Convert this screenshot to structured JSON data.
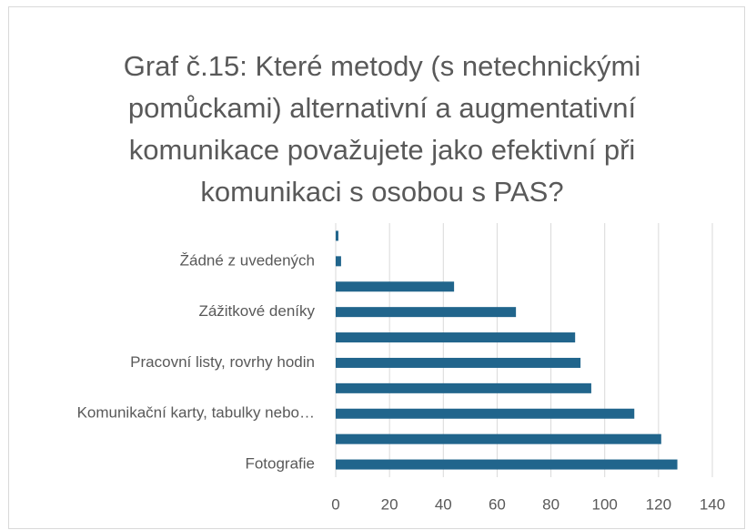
{
  "chart_data": {
    "type": "bar",
    "orientation": "horizontal",
    "title": "Graf č.15: Které metody (s netechnickými pomůckami) alternativní a augmentativní komunikace považujete jako efektivní při komunikaci s osobou s PAS?",
    "categories": [
      "Fotografie",
      null,
      "Komunikační karty, tabulky nebo…",
      null,
      "Pracovní listy, rovrhy hodin",
      null,
      "Zážitkové deníky",
      null,
      "Žádné z uvedených",
      null
    ],
    "values": [
      127,
      121,
      111,
      95,
      91,
      89,
      67,
      44,
      2,
      1
    ],
    "color": "#21658c",
    "xlim": [
      0,
      140
    ],
    "xticks": [
      0,
      20,
      40,
      60,
      80,
      100,
      120,
      140
    ],
    "grid": true
  }
}
